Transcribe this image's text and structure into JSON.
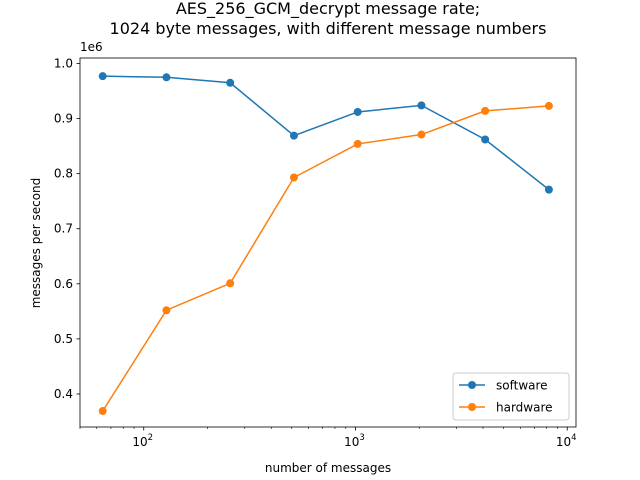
{
  "chart_data": {
    "type": "line",
    "title_lines": [
      "AES_256_GCM_decrypt message rate;",
      "1024 byte messages, with different message numbers"
    ],
    "xlabel": "number of messages",
    "ylabel": "messages per second",
    "x_scale": "log",
    "xlim": [
      50,
      11000
    ],
    "ylim": [
      0.34,
      1.01
    ],
    "y_offset_label": "1e6",
    "x_ticks": [
      {
        "value": 100,
        "base": "10",
        "exp": "2"
      },
      {
        "value": 1000,
        "base": "10",
        "exp": "3"
      },
      {
        "value": 10000,
        "base": "10",
        "exp": "4"
      }
    ],
    "y_ticks": [
      {
        "value": 0.4,
        "label": "0.4"
      },
      {
        "value": 0.5,
        "label": "0.5"
      },
      {
        "value": 0.6,
        "label": "0.6"
      },
      {
        "value": 0.7,
        "label": "0.7"
      },
      {
        "value": 0.8,
        "label": "0.8"
      },
      {
        "value": 0.9,
        "label": "0.9"
      },
      {
        "value": 1.0,
        "label": "1.0"
      }
    ],
    "x": [
      64,
      128,
      256,
      512,
      1024,
      2048,
      4096,
      8192
    ],
    "series": [
      {
        "name": "software",
        "color": "#1f77b4",
        "values": [
          0.977,
          0.975,
          0.965,
          0.869,
          0.912,
          0.924,
          0.862,
          0.771
        ]
      },
      {
        "name": "hardware",
        "color": "#ff7f0e",
        "values": [
          0.369,
          0.552,
          0.601,
          0.793,
          0.854,
          0.871,
          0.914,
          0.923
        ]
      }
    ],
    "grid": false,
    "legend_position": "lower right",
    "marker": "circle"
  }
}
